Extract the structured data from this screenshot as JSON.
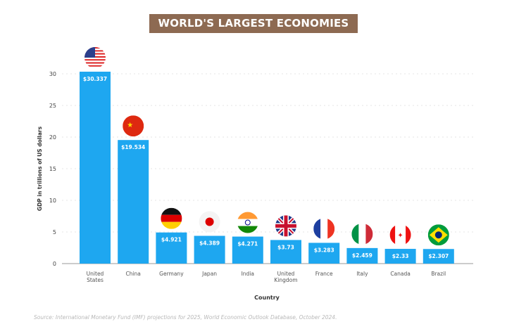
{
  "chart_data": {
    "type": "bar",
    "title": "WORLD'S LARGEST ECONOMIES",
    "xlabel": "Country",
    "ylabel": "GDP in trillions of US dollars",
    "ylim": [
      0,
      30
    ],
    "yticks": [
      0,
      5,
      10,
      15,
      20,
      25,
      30
    ],
    "grid": true,
    "categories": [
      "United States",
      "China",
      "Germany",
      "Japan",
      "India",
      "United Kingdom",
      "France",
      "Italy",
      "Canada",
      "Brazil"
    ],
    "values": [
      30.337,
      19.534,
      4.921,
      4.389,
      4.271,
      3.73,
      3.283,
      2.459,
      2.33,
      2.307
    ],
    "data_labels": [
      "$30.337",
      "$19.534",
      "$4.921",
      "$4.389",
      "$4.271",
      "$3.73",
      "$3.283",
      "$2.459",
      "$2.33",
      "$2.307"
    ],
    "flag_icons": [
      "us-flag-icon",
      "china-flag-icon",
      "germany-flag-icon",
      "japan-flag-icon",
      "india-flag-icon",
      "uk-flag-icon",
      "france-flag-icon",
      "italy-flag-icon",
      "canada-flag-icon",
      "brazil-flag-icon"
    ],
    "bar_color": "#1ea7f0",
    "source": "Source: International Monetary Fund (IMF) projections for 2025, World Economic Outlook Database, October 2024."
  }
}
